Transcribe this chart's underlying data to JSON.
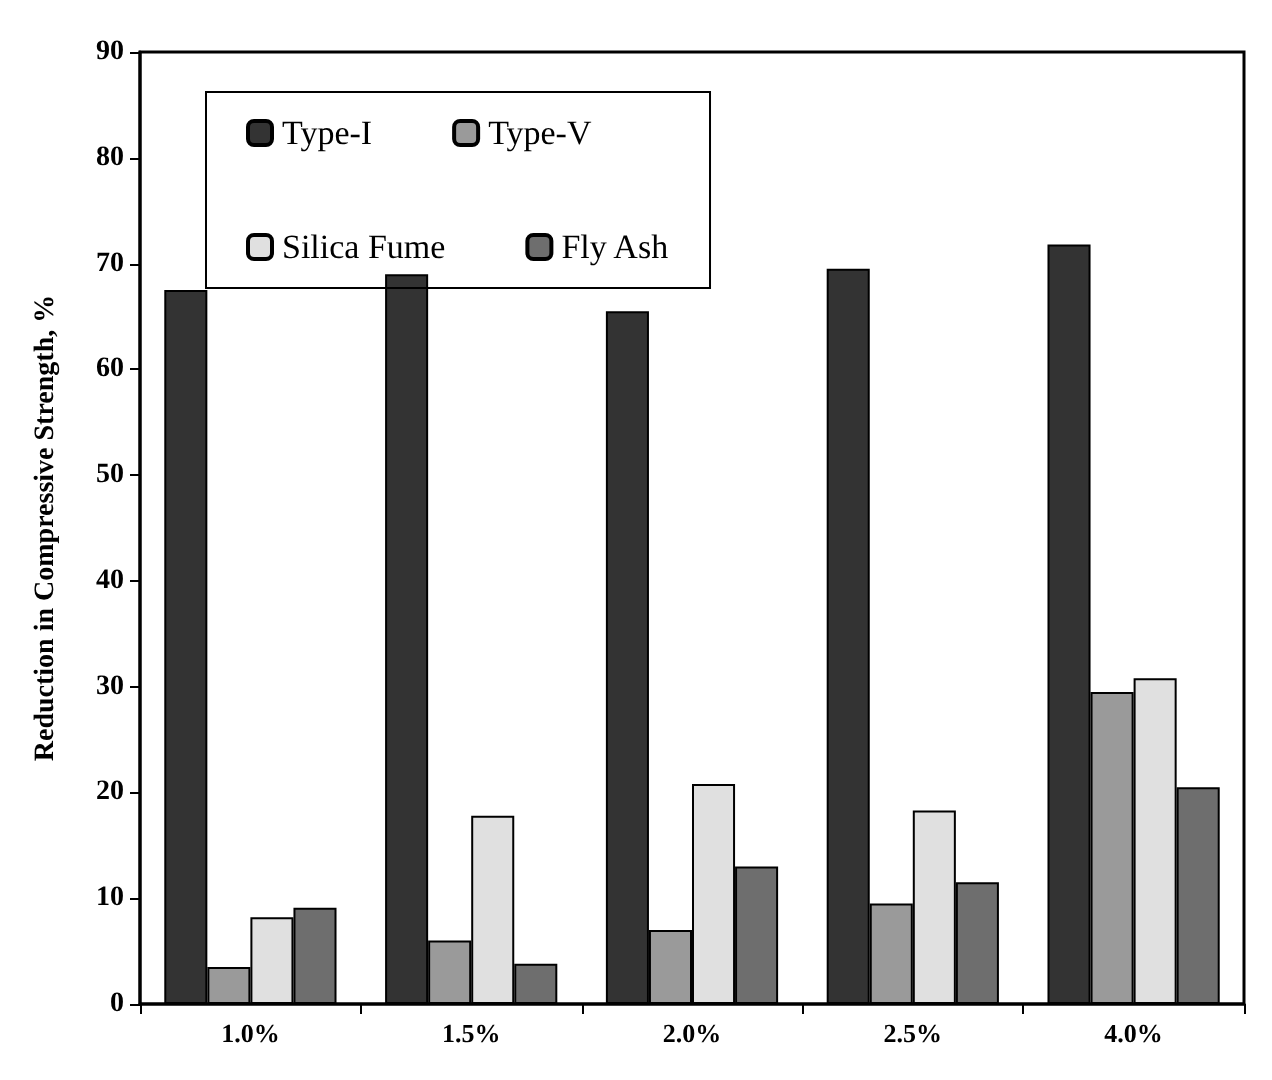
{
  "chart_data": {
    "type": "bar",
    "ylabel": "Reduction in Compressive Strength, %",
    "categories": [
      "1.0%",
      "1.5%",
      "2.0%",
      "2.5%",
      "4.0%"
    ],
    "series": [
      {
        "name": "Type-I",
        "color": "#333333",
        "values": [
          67.5,
          69,
          65.5,
          69.5,
          71.8
        ]
      },
      {
        "name": "Type-V",
        "color": "#9a9a9a",
        "values": [
          3.5,
          6,
          7,
          9.5,
          29.5
        ]
      },
      {
        "name": "Silica Fume",
        "color": "#e0e0e0",
        "values": [
          8.2,
          17.8,
          20.8,
          18.3,
          30.8
        ]
      },
      {
        "name": "Fly Ash",
        "color": "#6e6e6e",
        "values": [
          9.1,
          3.8,
          13,
          11.5,
          20.5
        ]
      }
    ],
    "ylim": [
      0,
      90
    ],
    "yticks": [
      0,
      10,
      20,
      30,
      40,
      50,
      60,
      70,
      80,
      90
    ],
    "grid": false,
    "legend": "top left"
  }
}
